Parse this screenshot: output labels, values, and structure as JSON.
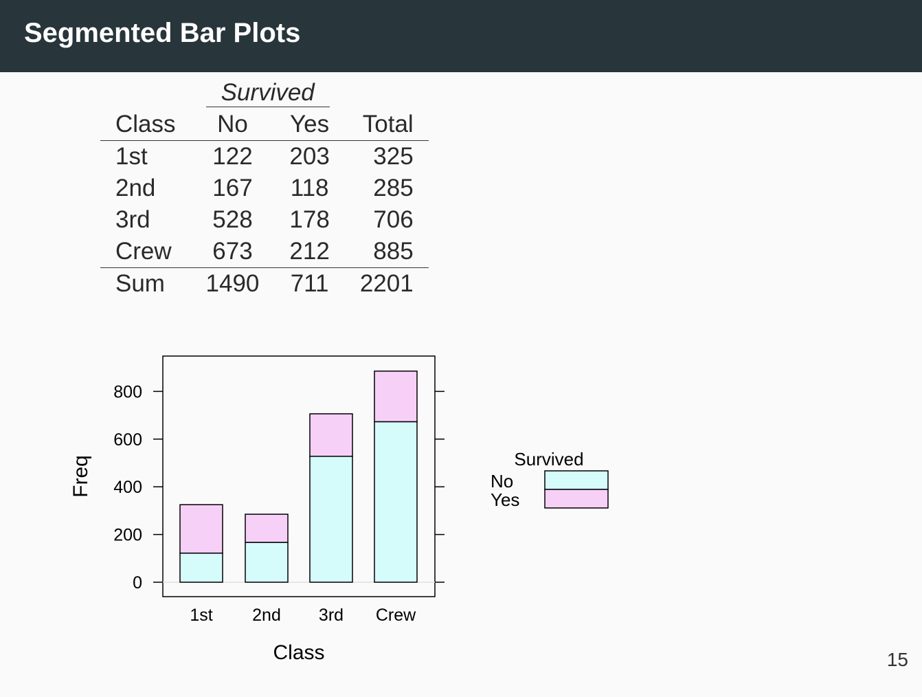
{
  "slide": {
    "title": "Segmented Bar Plots",
    "page_number": "15"
  },
  "table": {
    "group_header": "Survived",
    "columns": [
      "Class",
      "No",
      "Yes",
      "Total"
    ],
    "rows": [
      [
        "1st",
        "122",
        "203",
        "325"
      ],
      [
        "2nd",
        "167",
        "118",
        "285"
      ],
      [
        "3rd",
        "528",
        "178",
        "706"
      ],
      [
        "Crew",
        "673",
        "212",
        "885"
      ]
    ],
    "sum_row": [
      "Sum",
      "1490",
      "711",
      "2201"
    ]
  },
  "chart_data": {
    "type": "bar",
    "stacked": true,
    "categories": [
      "1st",
      "2nd",
      "3rd",
      "Crew"
    ],
    "series": [
      {
        "name": "No",
        "values": [
          122,
          167,
          528,
          673
        ],
        "color": "#d6fbfb"
      },
      {
        "name": "Yes",
        "values": [
          203,
          118,
          178,
          212
        ],
        "color": "#f7d0f7"
      }
    ],
    "xlabel": "Class",
    "ylabel": "Freq",
    "yticks": [
      0,
      200,
      400,
      600,
      800
    ],
    "ylim": [
      -60,
      960
    ],
    "legend": {
      "title": "Survived",
      "position": "right"
    },
    "grid": false
  }
}
